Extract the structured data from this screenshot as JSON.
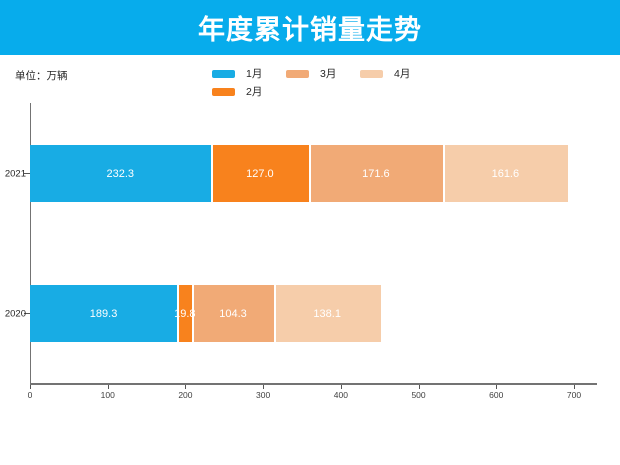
{
  "header": {
    "title": "年度累计销量走势",
    "banner_color": "#07ACEC",
    "title_color": "#ffffff"
  },
  "unit_label": "单位：万辆",
  "chart_data": {
    "type": "bar",
    "orientation": "horizontal",
    "stacked": true,
    "title": "年度累计销量走势",
    "unit": "万辆",
    "categories": [
      "2021",
      "2020"
    ],
    "series": [
      {
        "name": "1月",
        "color": "#18ACE4",
        "values": [
          232.3,
          189.3
        ]
      },
      {
        "name": "2月",
        "color": "#F8821D",
        "values": [
          127.0,
          19.8
        ]
      },
      {
        "name": "3月",
        "color": "#F1AA76",
        "values": [
          171.6,
          104.3
        ]
      },
      {
        "name": "4月",
        "color": "#F6CDAA",
        "values": [
          161.6,
          138.1
        ]
      }
    ],
    "totals": [
      692.5,
      451.5
    ],
    "xticks": [
      0,
      100,
      200,
      300,
      400,
      500,
      600,
      700
    ],
    "xlim": [
      0,
      730
    ],
    "grid": false,
    "legend_position": "top",
    "legend_rows": [
      [
        "1月",
        "3月",
        "4月"
      ],
      [
        "2月"
      ]
    ],
    "value_label_color": "#ffffff",
    "axis_color": "#737373"
  }
}
